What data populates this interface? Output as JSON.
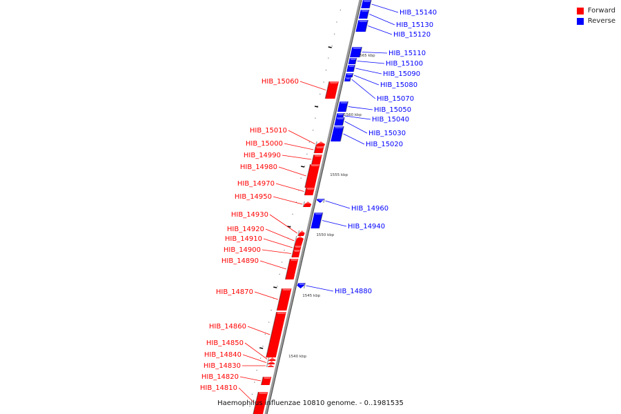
{
  "colors": {
    "forward": "#ff0000",
    "reverse": "#0000ff",
    "backbone": "#999999"
  },
  "legend": {
    "forward_label": "Forward",
    "reverse_label": "Reverse"
  },
  "title": "Haemophilus influenzae 10810 genome. - 0..1981535",
  "ticks": [
    "1565 kbp",
    "1560 kbp",
    "1555 kbp",
    "1550 kbp",
    "1545 kbp",
    "1540 kbp"
  ],
  "reverse_genes": [
    "HIB_15140",
    "HIB_15130",
    "HIB_15120",
    "HIB_15110",
    "HIB_15100",
    "HIB_15090",
    "HIB_15080",
    "HIB_15070",
    "HIB_15050",
    "HIB_15040",
    "HIB_15030",
    "HIB_15020",
    "HIB_14960",
    "HIB_14940",
    "HIB_14880"
  ],
  "forward_genes": [
    "HIB_15060",
    "HIB_15010",
    "HIB_15000",
    "HIB_14990",
    "HIB_14980",
    "HIB_14970",
    "HIB_14950",
    "HIB_14930",
    "HIB_14920",
    "HIB_14910",
    "HIB_14900",
    "HIB_14890",
    "HIB_14870",
    "HIB_14860",
    "HIB_14850",
    "HIB_14840",
    "HIB_14830",
    "HIB_14820",
    "HIB_14810"
  ]
}
